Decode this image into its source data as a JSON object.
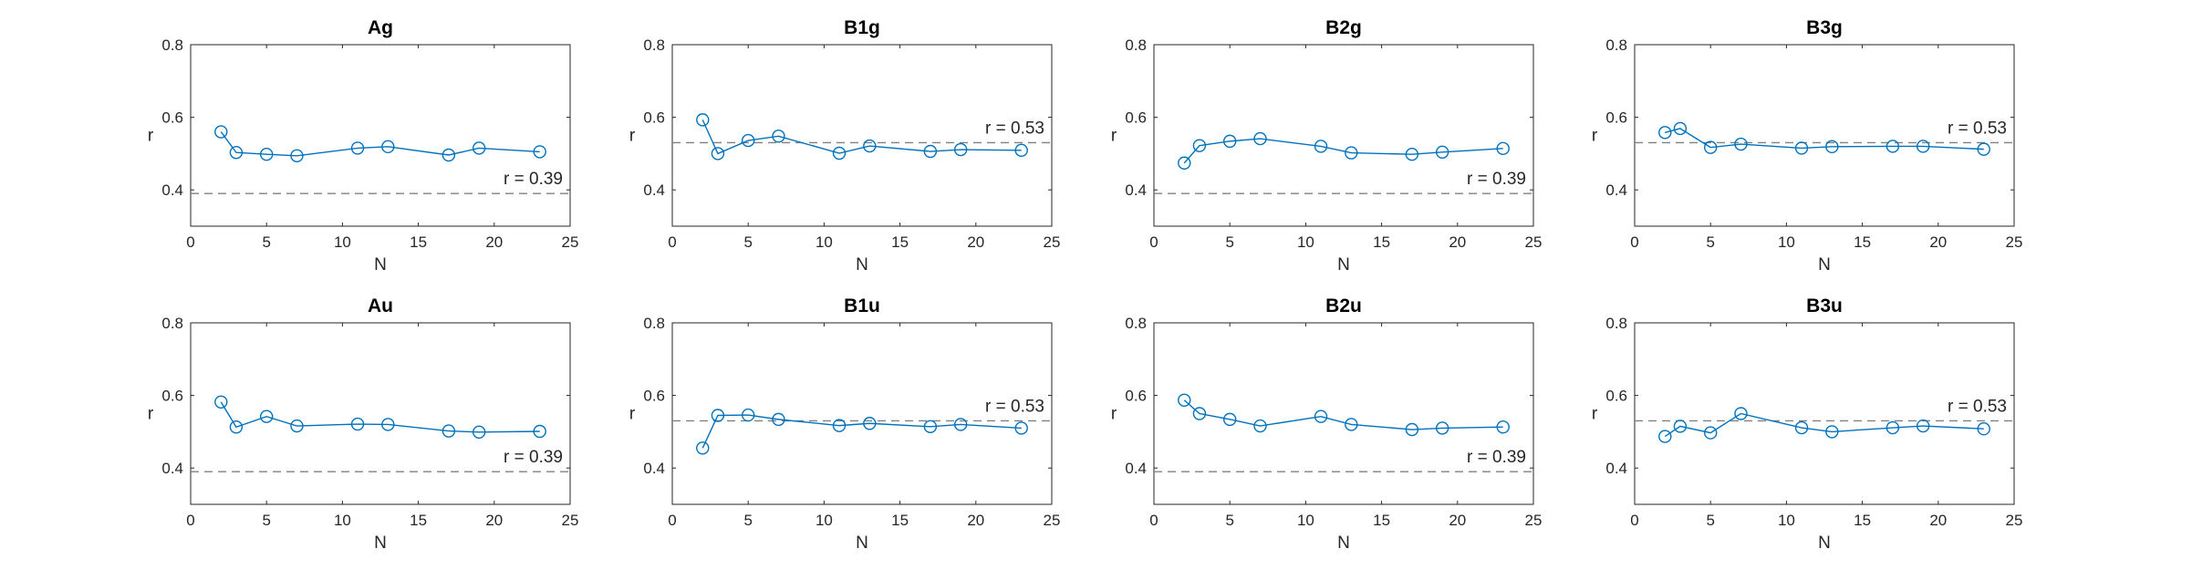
{
  "figure": {
    "colors": {
      "series": "#0072BD",
      "reference_line": "#808080",
      "axis": "#262626",
      "background": "#ffffff"
    }
  },
  "chart_data": [
    {
      "type": "line",
      "title": "Ag",
      "xlabel": "N",
      "ylabel": "r",
      "xlim": [
        0,
        25
      ],
      "ylim": [
        0.3,
        0.8
      ],
      "xticks": [
        "0",
        "5",
        "10",
        "15",
        "20",
        "25"
      ],
      "yticks": [
        "0.4",
        "0.6",
        "0.8"
      ],
      "grid": false,
      "x": [
        2,
        3,
        5,
        7,
        11,
        13,
        17,
        19,
        23
      ],
      "series": [
        {
          "values": [
            0.56,
            0.503,
            0.498,
            0.494,
            0.515,
            0.519,
            0.496,
            0.515,
            0.505
          ],
          "marker": "circle"
        }
      ],
      "reference": {
        "value": 0.39,
        "label": "r = 0.39"
      }
    },
    {
      "type": "line",
      "title": "B1g",
      "xlabel": "N",
      "ylabel": "r",
      "xlim": [
        0,
        25
      ],
      "ylim": [
        0.3,
        0.8
      ],
      "xticks": [
        "0",
        "5",
        "10",
        "15",
        "20",
        "25"
      ],
      "yticks": [
        "0.4",
        "0.6",
        "0.8"
      ],
      "grid": false,
      "x": [
        2,
        3,
        5,
        7,
        11,
        13,
        17,
        19,
        23
      ],
      "series": [
        {
          "values": [
            0.593,
            0.5,
            0.536,
            0.548,
            0.501,
            0.521,
            0.506,
            0.511,
            0.509
          ],
          "marker": "circle"
        }
      ],
      "reference": {
        "value": 0.53,
        "label": "r = 0.53"
      }
    },
    {
      "type": "line",
      "title": "B2g",
      "xlabel": "N",
      "ylabel": "r",
      "xlim": [
        0,
        25
      ],
      "ylim": [
        0.3,
        0.8
      ],
      "xticks": [
        "0",
        "5",
        "10",
        "15",
        "20",
        "25"
      ],
      "yticks": [
        "0.4",
        "0.6",
        "0.8"
      ],
      "grid": false,
      "x": [
        2,
        3,
        5,
        7,
        11,
        13,
        17,
        19,
        23
      ],
      "series": [
        {
          "values": [
            0.474,
            0.522,
            0.534,
            0.541,
            0.52,
            0.502,
            0.498,
            0.504,
            0.514
          ],
          "marker": "circle"
        }
      ],
      "reference": {
        "value": 0.39,
        "label": "r = 0.39"
      }
    },
    {
      "type": "line",
      "title": "B3g",
      "xlabel": "N",
      "ylabel": "r",
      "xlim": [
        0,
        25
      ],
      "ylim": [
        0.3,
        0.8
      ],
      "xticks": [
        "0",
        "5",
        "10",
        "15",
        "20",
        "25"
      ],
      "yticks": [
        "0.4",
        "0.6",
        "0.8"
      ],
      "grid": false,
      "x": [
        2,
        3,
        5,
        7,
        11,
        13,
        17,
        19,
        23
      ],
      "series": [
        {
          "values": [
            0.558,
            0.569,
            0.517,
            0.526,
            0.515,
            0.519,
            0.52,
            0.52,
            0.512
          ],
          "marker": "circle"
        }
      ],
      "reference": {
        "value": 0.53,
        "label": "r = 0.53"
      }
    },
    {
      "type": "line",
      "title": "Au",
      "xlabel": "N",
      "ylabel": "r",
      "xlim": [
        0,
        25
      ],
      "ylim": [
        0.3,
        0.8
      ],
      "xticks": [
        "0",
        "5",
        "10",
        "15",
        "20",
        "25"
      ],
      "yticks": [
        "0.4",
        "0.6",
        "0.8"
      ],
      "grid": false,
      "x": [
        2,
        3,
        5,
        7,
        11,
        13,
        17,
        19,
        23
      ],
      "series": [
        {
          "values": [
            0.582,
            0.513,
            0.542,
            0.516,
            0.521,
            0.52,
            0.502,
            0.499,
            0.501
          ],
          "marker": "circle"
        }
      ],
      "reference": {
        "value": 0.39,
        "label": "r = 0.39"
      }
    },
    {
      "type": "line",
      "title": "B1u",
      "xlabel": "N",
      "ylabel": "r",
      "xlim": [
        0,
        25
      ],
      "ylim": [
        0.3,
        0.8
      ],
      "xticks": [
        "0",
        "5",
        "10",
        "15",
        "20",
        "25"
      ],
      "yticks": [
        "0.4",
        "0.6",
        "0.8"
      ],
      "grid": false,
      "x": [
        2,
        3,
        5,
        7,
        11,
        13,
        17,
        19,
        23
      ],
      "series": [
        {
          "values": [
            0.455,
            0.545,
            0.546,
            0.534,
            0.517,
            0.523,
            0.514,
            0.52,
            0.51
          ],
          "marker": "circle"
        }
      ],
      "reference": {
        "value": 0.53,
        "label": "r = 0.53"
      }
    },
    {
      "type": "line",
      "title": "B2u",
      "xlabel": "N",
      "ylabel": "r",
      "xlim": [
        0,
        25
      ],
      "ylim": [
        0.3,
        0.8
      ],
      "xticks": [
        "0",
        "5",
        "10",
        "15",
        "20",
        "25"
      ],
      "yticks": [
        "0.4",
        "0.6",
        "0.8"
      ],
      "grid": false,
      "x": [
        2,
        3,
        5,
        7,
        11,
        13,
        17,
        19,
        23
      ],
      "series": [
        {
          "values": [
            0.587,
            0.55,
            0.534,
            0.516,
            0.542,
            0.52,
            0.506,
            0.51,
            0.513
          ],
          "marker": "circle"
        }
      ],
      "reference": {
        "value": 0.39,
        "label": "r = 0.39"
      }
    },
    {
      "type": "line",
      "title": "B3u",
      "xlabel": "N",
      "ylabel": "r",
      "xlim": [
        0,
        25
      ],
      "ylim": [
        0.3,
        0.8
      ],
      "xticks": [
        "0",
        "5",
        "10",
        "15",
        "20",
        "25"
      ],
      "yticks": [
        "0.4",
        "0.6",
        "0.8"
      ],
      "grid": false,
      "x": [
        2,
        3,
        5,
        7,
        11,
        13,
        17,
        19,
        23
      ],
      "series": [
        {
          "values": [
            0.487,
            0.515,
            0.497,
            0.55,
            0.511,
            0.5,
            0.511,
            0.516,
            0.508
          ],
          "marker": "circle"
        }
      ],
      "reference": {
        "value": 0.53,
        "label": "r = 0.53"
      }
    }
  ]
}
